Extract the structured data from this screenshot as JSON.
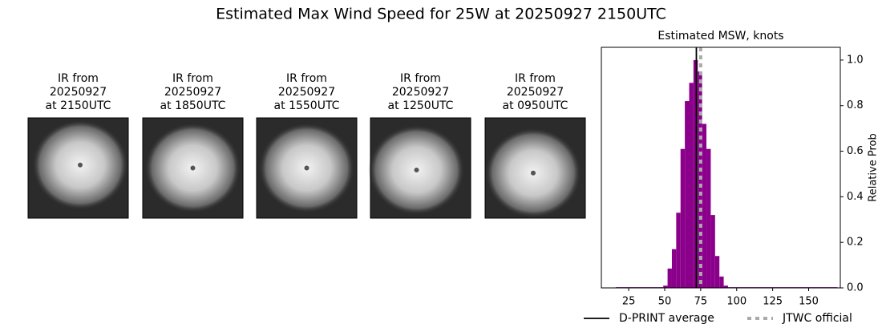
{
  "title": "Estimated Max Wind Speed for 25W at 20250927 2150UTC",
  "images": [
    {
      "title": [
        "IR from",
        "20250927",
        "at 2150UTC"
      ]
    },
    {
      "title": [
        "IR from",
        "20250927",
        "at 1850UTC"
      ]
    },
    {
      "title": [
        "IR from",
        "20250927",
        "at 1550UTC"
      ]
    },
    {
      "title": [
        "IR from",
        "20250927",
        "at 1250UTC"
      ]
    },
    {
      "title": [
        "IR from",
        "20250927",
        "at 0950UTC"
      ]
    }
  ],
  "chart_data": {
    "type": "histogram",
    "title": "Estimated MSW, knots",
    "y_label": "Relative Prob",
    "color": "#8b008b",
    "bins": [
      16,
      49,
      52,
      55,
      58,
      61,
      64,
      67,
      70,
      73,
      76,
      79,
      82,
      85,
      88,
      91,
      94,
      170
    ],
    "values": [
      0.003,
      0.01,
      0.085,
      0.17,
      0.33,
      0.61,
      0.82,
      0.9,
      1.0,
      0.95,
      0.72,
      0.61,
      0.32,
      0.14,
      0.05,
      0.01,
      0.003
    ],
    "xlim": [
      6,
      172
    ],
    "xticks": [
      25,
      50,
      75,
      100,
      125,
      150
    ],
    "ylim": [
      0,
      1.056
    ],
    "yticks": [
      {
        "value": 0,
        "label": "0.0"
      },
      0.2,
      0.4,
      0.6,
      0.8,
      {
        "value": 1,
        "label": "1.0"
      }
    ],
    "lines": [
      {
        "name": "D-PRINT average",
        "color": "#000000",
        "value": 72
      },
      {
        "name": "JTWC official",
        "color": "#aaaaaa",
        "value": 75
      }
    ]
  }
}
